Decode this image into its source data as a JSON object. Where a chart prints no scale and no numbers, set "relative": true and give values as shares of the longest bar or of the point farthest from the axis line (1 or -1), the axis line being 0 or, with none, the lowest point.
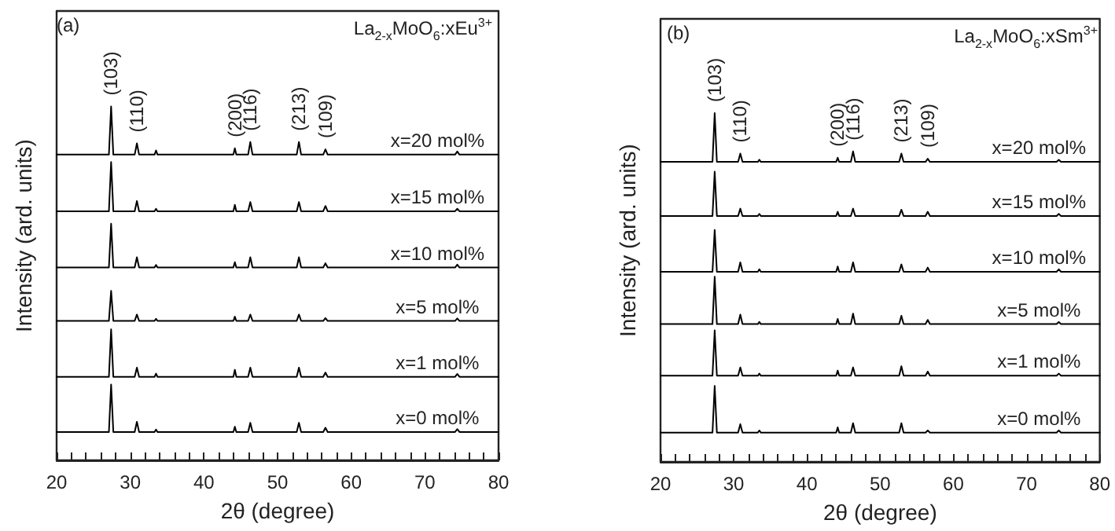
{
  "chart_data": [
    {
      "type": "line",
      "title": "La$_{2-x}$MoO$_{6}$:xEu$^{3+}$",
      "xlabel": "2θ (degree)",
      "ylabel": "Intensity (ard. units)",
      "relative": true,
      "grid": false,
      "legend": false,
      "marker": "none",
      "line_style": "solid",
      "tick_labels": "x",
      "xlim": [
        20,
        80
      ],
      "xticks": [
        20,
        {
          "value": 22,
          "label": null
        },
        {
          "value": 24,
          "label": null
        },
        {
          "value": 26,
          "label": null
        },
        {
          "value": 28,
          "label": null
        },
        30,
        {
          "value": 32,
          "label": null
        },
        {
          "value": 34,
          "label": null
        },
        {
          "value": 36,
          "label": null
        },
        {
          "value": 38,
          "label": null
        },
        40,
        {
          "value": 42,
          "label": null
        },
        {
          "value": 44,
          "label": null
        },
        {
          "value": 46,
          "label": null
        },
        {
          "value": 48,
          "label": null
        },
        50,
        {
          "value": 52,
          "label": null
        },
        {
          "value": 54,
          "label": null
        },
        {
          "value": 56,
          "label": null
        },
        {
          "value": 58,
          "label": null
        },
        60,
        {
          "value": 62,
          "label": null
        },
        {
          "value": 64,
          "label": null
        },
        {
          "value": 66,
          "label": null
        },
        {
          "value": 68,
          "label": null
        },
        70,
        {
          "value": 72,
          "label": null
        },
        {
          "value": 74,
          "label": null
        },
        {
          "value": 76,
          "label": null
        },
        {
          "value": 78,
          "label": null
        },
        80
      ],
      "x": [
        20,
        27.1,
        27.4,
        27.7,
        30.6,
        30.9,
        31.2,
        33.3,
        33.5,
        33.7,
        44.0,
        44.2,
        44.4,
        46.0,
        46.3,
        46.6,
        52.6,
        52.9,
        53.2,
        56.2,
        56.5,
        56.8,
        74.1,
        74.4,
        74.7,
        80
      ],
      "annotations": [
        "(a)",
        {
          "text": "(103)",
          "x": 27.4,
          "y": 1.0
        },
        {
          "text": "(110)",
          "x": 30.9,
          "y": 0.896
        },
        {
          "text": "(200)",
          "x": 44.2,
          "y": 0.882
        },
        {
          "text": "(116)",
          "x": 46.3,
          "y": 0.9
        },
        {
          "text": "(213)",
          "x": 52.9,
          "y": 0.9
        },
        {
          "text": "(109)",
          "x": 56.5,
          "y": 0.879
        }
      ],
      "series": [
        {
          "name": "x=20 mol%",
          "color": "#000000",
          "values": [
            0.864,
            0.864,
            1.0,
            0.864,
            0.864,
            0.896,
            0.864,
            0.864,
            0.876,
            0.864,
            0.864,
            0.882,
            0.864,
            0.864,
            0.9,
            0.864,
            0.864,
            0.9,
            0.864,
            0.864,
            0.879,
            0.864,
            0.864,
            0.873,
            0.864,
            0.864
          ]
        },
        {
          "name": "x=15 mol%",
          "color": "#000000",
          "values": [
            0.704,
            0.704,
            0.843,
            0.704,
            0.704,
            0.733,
            0.704,
            0.704,
            0.711,
            0.704,
            0.704,
            0.722,
            0.704,
            0.704,
            0.73,
            0.704,
            0.704,
            0.73,
            0.704,
            0.704,
            0.719,
            0.704,
            0.704,
            0.711,
            0.704,
            0.704
          ]
        },
        {
          "name": "x=10 mol%",
          "color": "#000000",
          "values": [
            0.545,
            0.545,
            0.669,
            0.545,
            0.545,
            0.574,
            0.545,
            0.545,
            0.552,
            0.545,
            0.545,
            0.56,
            0.545,
            0.545,
            0.574,
            0.545,
            0.545,
            0.574,
            0.545,
            0.545,
            0.557,
            0.545,
            0.545,
            0.553,
            0.545,
            0.545
          ]
        },
        {
          "name": "x=5 mol%",
          "color": "#000000",
          "values": [
            0.394,
            0.394,
            0.479,
            0.394,
            0.394,
            0.412,
            0.394,
            0.394,
            0.4,
            0.394,
            0.394,
            0.406,
            0.394,
            0.394,
            0.412,
            0.394,
            0.394,
            0.412,
            0.394,
            0.394,
            0.402,
            0.394,
            0.394,
            0.401,
            0.394,
            0.394
          ]
        },
        {
          "name": "x=1 mol%",
          "color": "#000000",
          "values": [
            0.236,
            0.236,
            0.37,
            0.236,
            0.236,
            0.262,
            0.236,
            0.236,
            0.245,
            0.236,
            0.236,
            0.256,
            0.236,
            0.236,
            0.262,
            0.236,
            0.236,
            0.262,
            0.236,
            0.236,
            0.248,
            0.236,
            0.236,
            0.244,
            0.236,
            0.236
          ]
        },
        {
          "name": "x=0 mol%",
          "color": "#000000",
          "values": [
            0.08,
            0.08,
            0.214,
            0.08,
            0.08,
            0.109,
            0.08,
            0.08,
            0.087,
            0.08,
            0.08,
            0.095,
            0.08,
            0.08,
            0.106,
            0.08,
            0.08,
            0.106,
            0.08,
            0.08,
            0.092,
            0.08,
            0.08,
            0.088,
            0.08,
            0.08
          ]
        }
      ]
    },
    {
      "type": "line",
      "title": "La$_{2-x}$MoO$_{6}$:xSm$^{3+}$",
      "xlabel": "2θ (degree)",
      "ylabel": "Intensity (ard. units)",
      "relative": true,
      "grid": false,
      "legend": false,
      "marker": "none",
      "line_style": "solid",
      "tick_labels": "x",
      "xlim": [
        20,
        80
      ],
      "xticks": [
        20,
        {
          "value": 22,
          "label": null
        },
        {
          "value": 24,
          "label": null
        },
        {
          "value": 26,
          "label": null
        },
        {
          "value": 28,
          "label": null
        },
        30,
        {
          "value": 32,
          "label": null
        },
        {
          "value": 34,
          "label": null
        },
        {
          "value": 36,
          "label": null
        },
        {
          "value": 38,
          "label": null
        },
        40,
        {
          "value": 42,
          "label": null
        },
        {
          "value": 44,
          "label": null
        },
        {
          "value": 46,
          "label": null
        },
        {
          "value": 48,
          "label": null
        },
        50,
        {
          "value": 52,
          "label": null
        },
        {
          "value": 54,
          "label": null
        },
        {
          "value": 56,
          "label": null
        },
        {
          "value": 58,
          "label": null
        },
        60,
        {
          "value": 62,
          "label": null
        },
        {
          "value": 64,
          "label": null
        },
        {
          "value": 66,
          "label": null
        },
        {
          "value": 68,
          "label": null
        },
        70,
        {
          "value": 72,
          "label": null
        },
        {
          "value": 74,
          "label": null
        },
        {
          "value": 76,
          "label": null
        },
        {
          "value": 78,
          "label": null
        },
        80
      ],
      "x": [
        20,
        27.1,
        27.4,
        27.7,
        30.6,
        30.9,
        31.2,
        33.3,
        33.5,
        33.7,
        44.0,
        44.2,
        44.4,
        46.0,
        46.3,
        46.6,
        52.6,
        52.9,
        53.2,
        56.2,
        56.5,
        56.8,
        74.1,
        74.4,
        74.7,
        80
      ],
      "annotations": [
        "(b)",
        {
          "text": "(103)",
          "x": 27.4,
          "y": 1.0
        },
        {
          "text": "(110)",
          "x": 30.9,
          "y": 0.884
        },
        {
          "text": "(200)",
          "x": 44.2,
          "y": 0.872
        },
        {
          "text": "(116)",
          "x": 46.3,
          "y": 0.89
        },
        {
          "text": "(213)",
          "x": 52.9,
          "y": 0.884
        },
        {
          "text": "(109)",
          "x": 56.5,
          "y": 0.869
        }
      ],
      "series": [
        {
          "name": "x=20 mol%",
          "color": "#000000",
          "values": [
            0.86,
            0.86,
            1.0,
            0.86,
            0.86,
            0.884,
            0.86,
            0.86,
            0.866,
            0.86,
            0.86,
            0.872,
            0.86,
            0.86,
            0.89,
            0.86,
            0.86,
            0.884,
            0.86,
            0.86,
            0.869,
            0.86,
            0.86,
            0.866,
            0.86,
            0.86
          ]
        },
        {
          "name": "x=15 mol%",
          "color": "#000000",
          "values": [
            0.705,
            0.705,
            0.832,
            0.705,
            0.705,
            0.726,
            0.705,
            0.705,
            0.711,
            0.705,
            0.705,
            0.717,
            0.705,
            0.705,
            0.726,
            0.705,
            0.705,
            0.723,
            0.705,
            0.705,
            0.717,
            0.705,
            0.705,
            0.711,
            0.705,
            0.705
          ]
        },
        {
          "name": "x=10 mol%",
          "color": "#000000",
          "values": [
            0.545,
            0.545,
            0.665,
            0.545,
            0.545,
            0.572,
            0.545,
            0.545,
            0.552,
            0.545,
            0.545,
            0.56,
            0.545,
            0.545,
            0.572,
            0.545,
            0.545,
            0.566,
            0.545,
            0.545,
            0.557,
            0.545,
            0.545,
            0.552,
            0.545,
            0.545
          ]
        },
        {
          "name": "x=5 mol%",
          "color": "#000000",
          "values": [
            0.395,
            0.395,
            0.531,
            0.395,
            0.395,
            0.422,
            0.395,
            0.395,
            0.401,
            0.395,
            0.395,
            0.41,
            0.395,
            0.395,
            0.425,
            0.395,
            0.395,
            0.419,
            0.395,
            0.395,
            0.407,
            0.395,
            0.395,
            0.401,
            0.395,
            0.395
          ]
        },
        {
          "name": "x=1 mol%",
          "color": "#000000",
          "values": [
            0.247,
            0.247,
            0.377,
            0.247,
            0.247,
            0.271,
            0.247,
            0.247,
            0.253,
            0.247,
            0.247,
            0.262,
            0.247,
            0.247,
            0.271,
            0.247,
            0.247,
            0.274,
            0.247,
            0.247,
            0.259,
            0.247,
            0.247,
            0.253,
            0.247,
            0.247
          ]
        },
        {
          "name": "x=0 mol%",
          "color": "#000000",
          "values": [
            0.084,
            0.084,
            0.218,
            0.084,
            0.084,
            0.108,
            0.084,
            0.084,
            0.09,
            0.084,
            0.084,
            0.099,
            0.084,
            0.084,
            0.111,
            0.084,
            0.084,
            0.111,
            0.084,
            0.084,
            0.09,
            0.084,
            0.084,
            0.09,
            0.084,
            0.084
          ]
        }
      ]
    }
  ]
}
